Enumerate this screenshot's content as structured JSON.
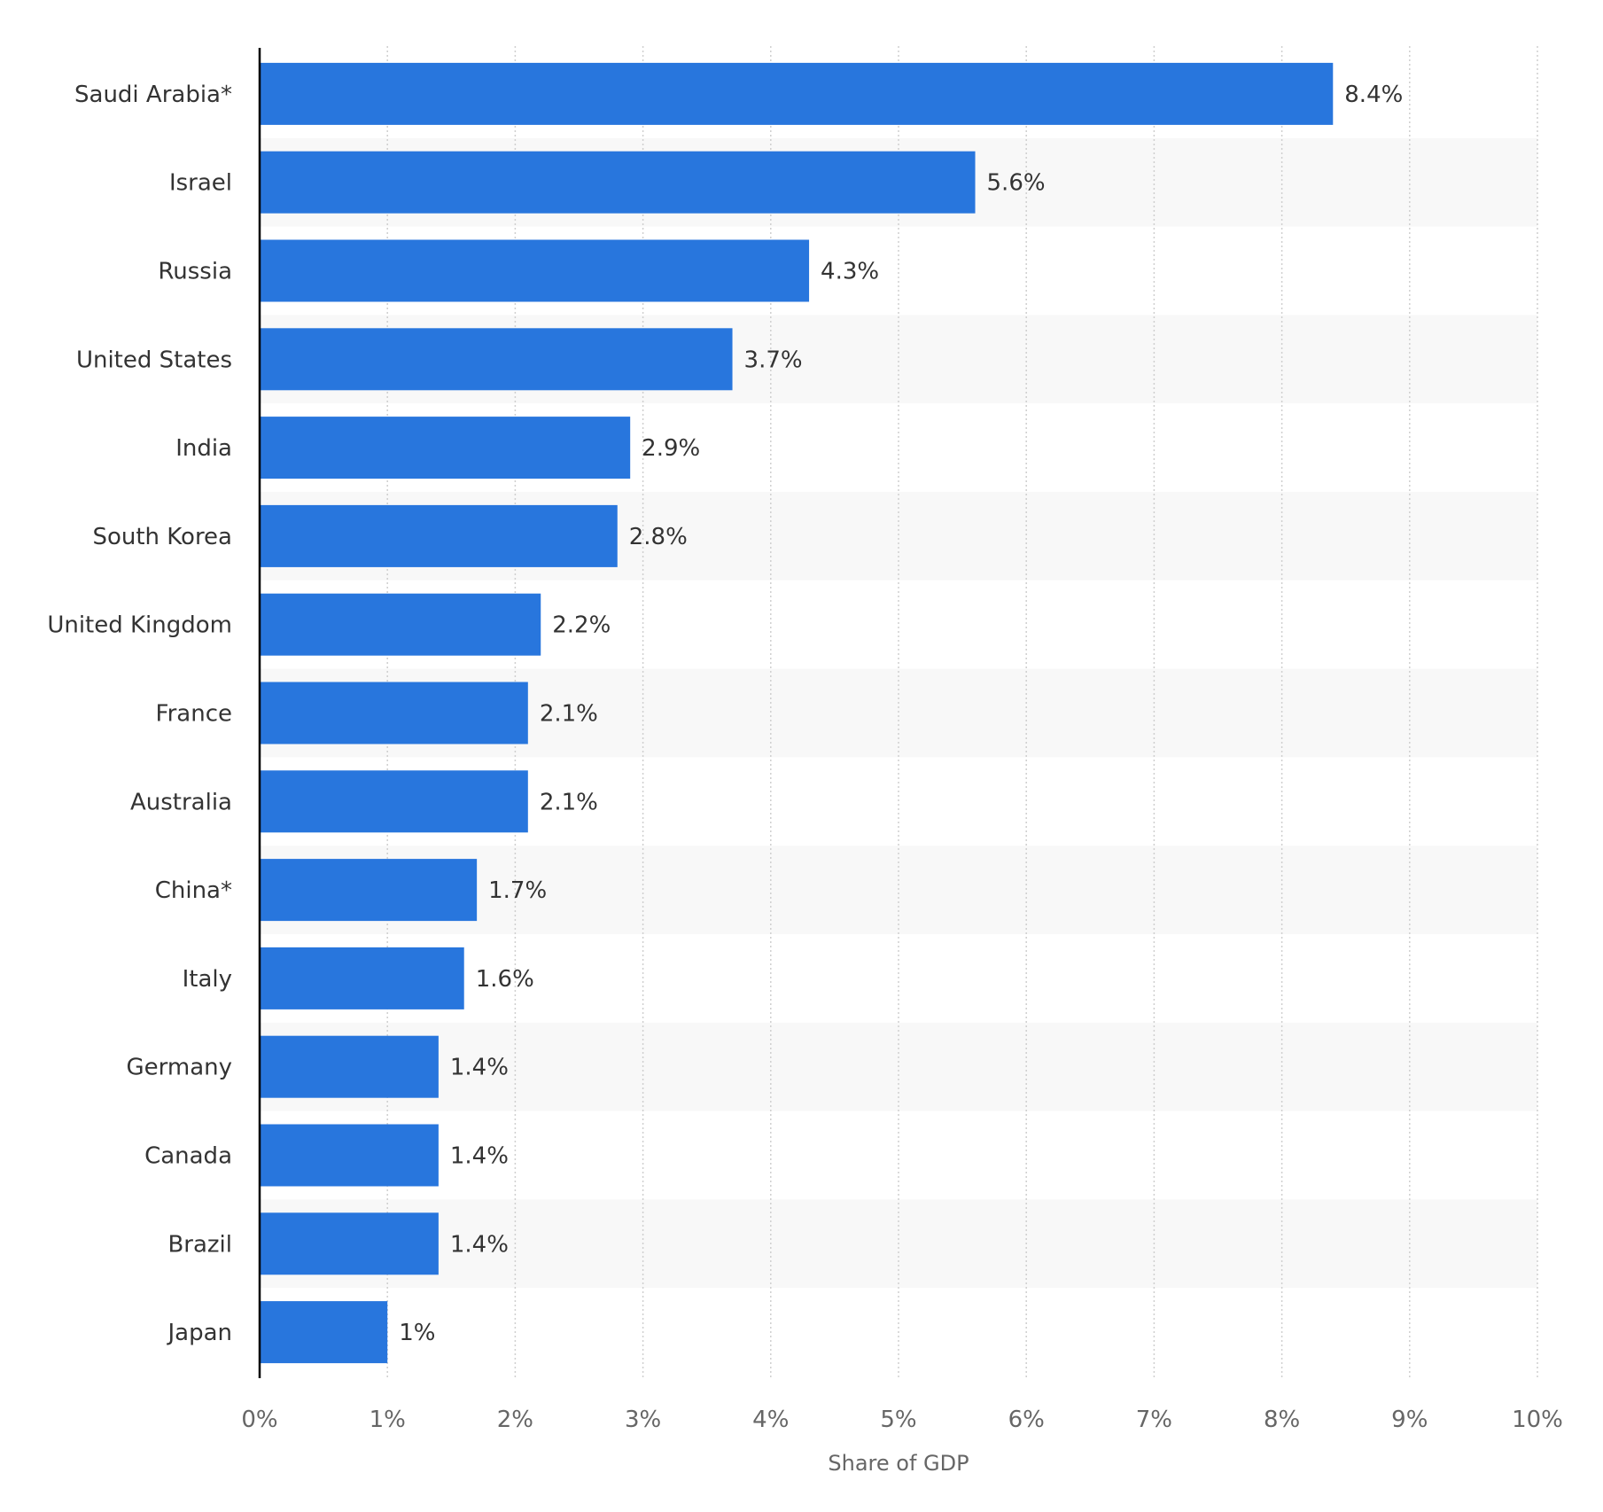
{
  "chart_data": {
    "type": "bar",
    "orientation": "horizontal",
    "categories": [
      "Saudi Arabia*",
      "Israel",
      "Russia",
      "United States",
      "India",
      "South Korea",
      "United Kingdom",
      "France",
      "Australia",
      "China*",
      "Italy",
      "Germany",
      "Canada",
      "Brazil",
      "Japan"
    ],
    "values": [
      8.4,
      5.6,
      4.3,
      3.7,
      2.9,
      2.8,
      2.2,
      2.1,
      2.1,
      1.7,
      1.6,
      1.4,
      1.4,
      1.4,
      1.0
    ],
    "value_labels": [
      "8.4%",
      "5.6%",
      "4.3%",
      "3.7%",
      "2.9%",
      "2.8%",
      "2.2%",
      "2.1%",
      "2.1%",
      "1.7%",
      "1.6%",
      "1.4%",
      "1.4%",
      "1.4%",
      "1%"
    ],
    "title": "",
    "xlabel": "Share of GDP",
    "ylabel": "",
    "xlim": [
      0,
      10
    ],
    "x_ticks": [
      0,
      1,
      2,
      3,
      4,
      5,
      6,
      7,
      8,
      9,
      10
    ],
    "x_tick_labels": [
      "0%",
      "1%",
      "2%",
      "3%",
      "4%",
      "5%",
      "6%",
      "7%",
      "8%",
      "9%",
      "10%"
    ],
    "grid": "vertical dotted",
    "legend": "none",
    "alternating_row_bands": true
  },
  "colors": {
    "bar": "#2876dd",
    "band": "#f8f8f8",
    "grid": "#cfcfcf",
    "axis": "#000000",
    "category_text": "#333333",
    "value_text": "#333333",
    "tick_text": "#666666",
    "axis_label_text": "#666666"
  }
}
